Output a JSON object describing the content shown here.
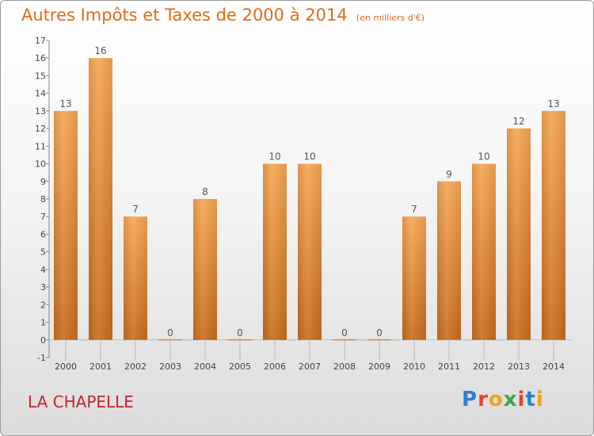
{
  "chart_data": {
    "type": "bar",
    "title": "Autres Impôts et Taxes de 2000 à 2014",
    "unit": "(en milliers d'€)",
    "categories": [
      "2000",
      "2001",
      "2002",
      "2003",
      "2004",
      "2005",
      "2006",
      "2007",
      "2008",
      "2009",
      "2010",
      "2011",
      "2012",
      "2013",
      "2014"
    ],
    "values": [
      13,
      16,
      7,
      0,
      8,
      0,
      10,
      10,
      0,
      0,
      7,
      9,
      10,
      12,
      13
    ],
    "ylim": [
      -1,
      17
    ],
    "yticks": [
      -1,
      0,
      1,
      2,
      3,
      4,
      5,
      6,
      7,
      8,
      9,
      10,
      11,
      12,
      13,
      14,
      15,
      16,
      17
    ],
    "grid": false,
    "bar_color": "#f0963c"
  },
  "place": "LA CHAPELLE",
  "logo": {
    "text": "Proxiti"
  }
}
